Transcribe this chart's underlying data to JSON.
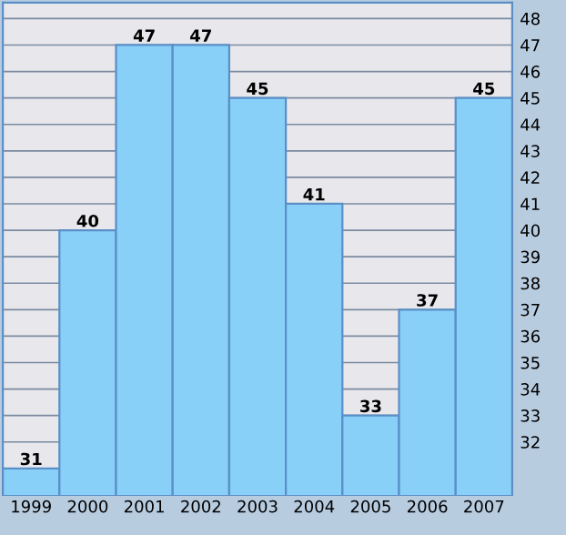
{
  "chart_data": {
    "type": "bar",
    "categories": [
      "1999",
      "2000",
      "2001",
      "2002",
      "2003",
      "2004",
      "2005",
      "2006",
      "2007"
    ],
    "values": [
      31,
      40,
      47,
      47,
      45,
      41,
      33,
      37,
      45
    ],
    "color": "#88d0f8",
    "data_labels": true,
    "ylim": [
      30,
      48.6
    ],
    "yticks": [
      32,
      33,
      34,
      35,
      36,
      37,
      38,
      39,
      40,
      41,
      42,
      43,
      44,
      45,
      46,
      47,
      48
    ],
    "grid": "y"
  }
}
